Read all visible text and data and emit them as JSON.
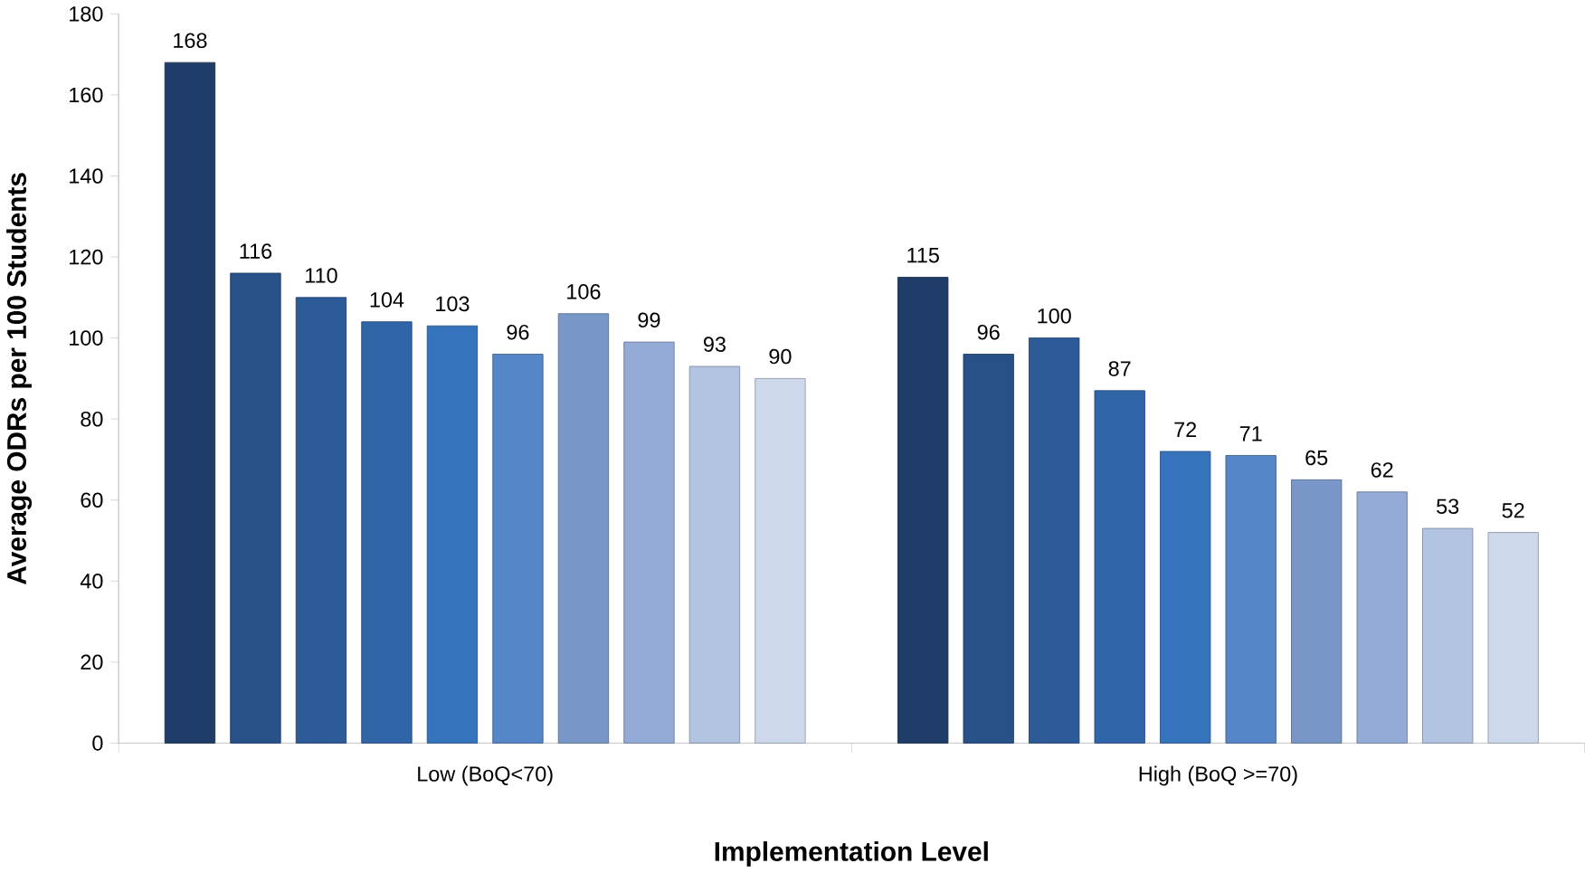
{
  "chart_data": {
    "type": "bar",
    "xlabel": "Implementation Level",
    "ylabel": "Average ODRs  per 100 Students",
    "categories": [
      "Low (BoQ<70)",
      "High (BoQ >=70)"
    ],
    "series": [
      {
        "color": "#1f3d68",
        "values": [
          168,
          115
        ]
      },
      {
        "color": "#28518a",
        "values": [
          116,
          96
        ]
      },
      {
        "color": "#2c5b98",
        "values": [
          110,
          100
        ]
      },
      {
        "color": "#3065a8",
        "values": [
          104,
          87
        ]
      },
      {
        "color": "#3673bd",
        "values": [
          103,
          72
        ]
      },
      {
        "color": "#5586c8",
        "values": [
          96,
          71
        ]
      },
      {
        "color": "#7897c8",
        "values": [
          106,
          65
        ]
      },
      {
        "color": "#93abd6",
        "values": [
          99,
          62
        ]
      },
      {
        "color": "#b2c4e2",
        "values": [
          93,
          53
        ]
      },
      {
        "color": "#cdd8ea",
        "values": [
          90,
          52
        ]
      }
    ],
    "ylim": [
      0,
      180
    ],
    "yticks": [
      0,
      20,
      40,
      60,
      80,
      100,
      120,
      140,
      160,
      180
    ],
    "data_labels": true
  }
}
